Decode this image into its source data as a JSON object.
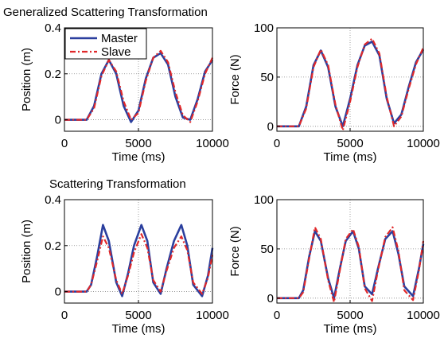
{
  "chart_data": [
    {
      "type": "line",
      "title": "Generalized Scattering Transformation",
      "xlabel": "Time (ms)",
      "ylabel": "Position (m)",
      "xlim": [
        0,
        10000
      ],
      "ylim": [
        -0.05,
        0.4
      ],
      "xticks": [
        0,
        5000,
        10000
      ],
      "yticks": [
        0,
        0.2,
        0.4
      ],
      "xtick_labels": [
        "0",
        "5000",
        "10000"
      ],
      "ytick_labels": [
        "0",
        "0.2",
        "0.4"
      ],
      "grid": "dotted",
      "legend": "top-left",
      "x": [
        0,
        1500,
        2000,
        2500,
        3000,
        3500,
        4000,
        4500,
        5000,
        5500,
        6000,
        6500,
        7000,
        7500,
        8000,
        8500,
        9000,
        9500,
        10000
      ],
      "series": [
        {
          "name": "Master",
          "color": "#2b3f9e",
          "style": "solid",
          "values": [
            0.0,
            0.0,
            0.06,
            0.2,
            0.26,
            0.2,
            0.06,
            -0.01,
            0.04,
            0.18,
            0.27,
            0.29,
            0.24,
            0.1,
            0.01,
            0.0,
            0.09,
            0.21,
            0.26
          ]
        },
        {
          "name": "Slave",
          "color": "#e0282a",
          "style": "dashdot",
          "values": [
            0.0,
            0.0,
            0.05,
            0.19,
            0.26,
            0.21,
            0.08,
            0.0,
            0.03,
            0.17,
            0.27,
            0.3,
            0.25,
            0.12,
            0.02,
            -0.01,
            0.08,
            0.2,
            0.27
          ]
        }
      ]
    },
    {
      "type": "line",
      "title": "",
      "xlabel": "Time (ms)",
      "ylabel": "Force (N)",
      "xlim": [
        0,
        10000
      ],
      "ylim": [
        -5,
        100
      ],
      "xticks": [
        0,
        5000,
        10000
      ],
      "yticks": [
        0,
        50,
        100
      ],
      "xtick_labels": [
        "0",
        "5000",
        "10000"
      ],
      "ytick_labels": [
        "0",
        "50",
        "100"
      ],
      "grid": "dotted",
      "legend": "none",
      "x": [
        0,
        1500,
        2000,
        2500,
        3000,
        3500,
        4000,
        4500,
        5000,
        5500,
        6000,
        6500,
        7000,
        7500,
        8000,
        8500,
        9000,
        9500,
        10000
      ],
      "series": [
        {
          "name": "Master",
          "color": "#2b3f9e",
          "style": "solid",
          "values": [
            0,
            0,
            20,
            62,
            77,
            60,
            20,
            0,
            28,
            62,
            82,
            86,
            72,
            28,
            3,
            12,
            40,
            65,
            78
          ]
        },
        {
          "name": "Slave",
          "color": "#e0282a",
          "style": "dashdot",
          "values": [
            0,
            0,
            18,
            60,
            78,
            62,
            22,
            -4,
            25,
            60,
            83,
            89,
            74,
            30,
            0,
            10,
            38,
            63,
            80
          ]
        }
      ]
    },
    {
      "type": "line",
      "title": "Scattering Transformation",
      "xlabel": "Time (ms)",
      "ylabel": "Position (m)",
      "xlim": [
        0,
        10000
      ],
      "ylim": [
        -0.05,
        0.4
      ],
      "xticks": [
        0,
        5000,
        10000
      ],
      "yticks": [
        0,
        0.2,
        0.4
      ],
      "xtick_labels": [
        "0",
        "5000",
        "10000"
      ],
      "ytick_labels": [
        "0",
        "0.2",
        "0.4"
      ],
      "grid": "dotted",
      "legend": "none",
      "x": [
        0,
        1500,
        1800,
        2200,
        2600,
        3000,
        3500,
        3900,
        4300,
        4700,
        5200,
        5600,
        6000,
        6500,
        6900,
        7400,
        7900,
        8300,
        8700,
        9300,
        9700,
        10000
      ],
      "series": [
        {
          "name": "Master",
          "color": "#2b3f9e",
          "style": "solid",
          "values": [
            0.0,
            0.0,
            0.03,
            0.15,
            0.29,
            0.22,
            0.04,
            -0.02,
            0.08,
            0.2,
            0.29,
            0.22,
            0.04,
            -0.01,
            0.1,
            0.22,
            0.29,
            0.2,
            0.03,
            -0.02,
            0.07,
            0.19
          ]
        },
        {
          "name": "Slave",
          "color": "#e0282a",
          "style": "dashdot",
          "values": [
            0.0,
            0.0,
            0.03,
            0.13,
            0.24,
            0.19,
            0.05,
            -0.01,
            0.07,
            0.17,
            0.25,
            0.19,
            0.05,
            0.0,
            0.09,
            0.19,
            0.24,
            0.18,
            0.04,
            -0.01,
            0.06,
            0.16
          ]
        }
      ]
    },
    {
      "type": "line",
      "title": "",
      "xlabel": "Time (ms)",
      "ylabel": "Force (N)",
      "xlim": [
        0,
        10000
      ],
      "ylim": [
        -5,
        100
      ],
      "xticks": [
        0,
        5000,
        10000
      ],
      "yticks": [
        0,
        50,
        100
      ],
      "xtick_labels": [
        "0",
        "5000",
        "10000"
      ],
      "ytick_labels": [
        "0",
        "50",
        "100"
      ],
      "grid": "dotted",
      "legend": "none",
      "x": [
        0,
        1500,
        1800,
        2200,
        2600,
        3000,
        3500,
        3900,
        4300,
        4700,
        5200,
        5600,
        6000,
        6500,
        6900,
        7400,
        7900,
        8300,
        8700,
        9300,
        9700,
        10000
      ],
      "series": [
        {
          "name": "Master",
          "color": "#2b3f9e",
          "style": "solid",
          "values": [
            0,
            0,
            8,
            42,
            68,
            58,
            20,
            0,
            30,
            58,
            68,
            50,
            12,
            4,
            30,
            60,
            68,
            45,
            12,
            2,
            30,
            55
          ]
        },
        {
          "name": "Slave",
          "color": "#e0282a",
          "style": "dashdot",
          "values": [
            0,
            0,
            6,
            40,
            72,
            60,
            18,
            -4,
            28,
            60,
            70,
            52,
            10,
            -3,
            28,
            62,
            72,
            48,
            8,
            -2,
            28,
            58
          ]
        }
      ]
    }
  ]
}
